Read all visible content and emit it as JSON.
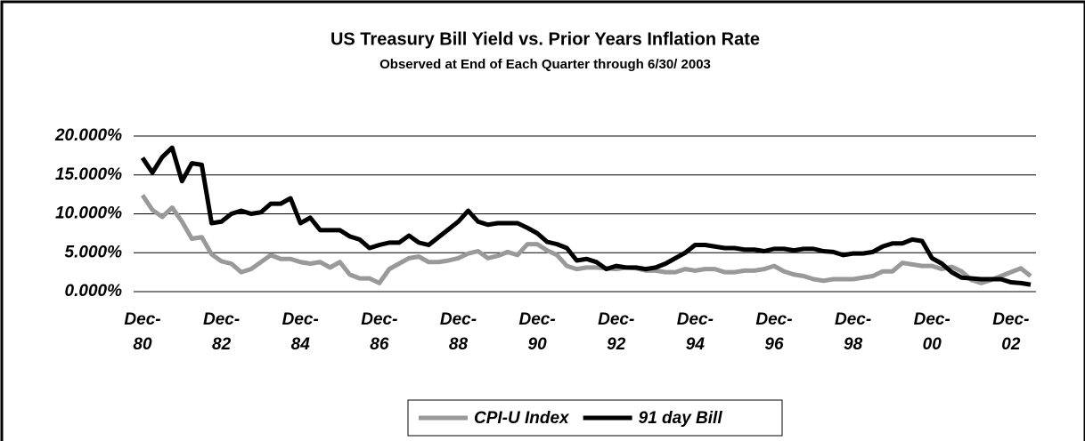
{
  "chart_data": {
    "type": "line",
    "title": "US Treasury Bill Yield vs. Prior Years Inflation Rate",
    "subtitle": "Observed at End of Each Quarter through 6/30/ 2003",
    "categories": [
      "Dec-80",
      null,
      null,
      null,
      null,
      null,
      null,
      null,
      "Dec-82",
      null,
      null,
      null,
      null,
      null,
      null,
      null,
      "Dec-84",
      null,
      null,
      null,
      null,
      null,
      null,
      null,
      "Dec-86",
      null,
      null,
      null,
      null,
      null,
      null,
      null,
      "Dec-88",
      null,
      null,
      null,
      null,
      null,
      null,
      null,
      "Dec-90",
      null,
      null,
      null,
      null,
      null,
      null,
      null,
      "Dec-92",
      null,
      null,
      null,
      null,
      null,
      null,
      null,
      "Dec-94",
      null,
      null,
      null,
      null,
      null,
      null,
      null,
      "Dec-96",
      null,
      null,
      null,
      null,
      null,
      null,
      null,
      "Dec-98",
      null,
      null,
      null,
      null,
      null,
      null,
      null,
      "Dec-00",
      null,
      null,
      null,
      null,
      null,
      null,
      null,
      "Dec-02",
      null,
      null
    ],
    "series": [
      {
        "name": "CPI-U Index",
        "color": "#999999",
        "values": [
          12.4,
          10.5,
          9.6,
          10.8,
          9.0,
          6.8,
          7.0,
          4.8,
          3.9,
          3.6,
          2.5,
          2.9,
          3.8,
          4.7,
          4.2,
          4.2,
          3.8,
          3.6,
          3.8,
          3.1,
          3.8,
          2.2,
          1.7,
          1.7,
          1.1,
          2.9,
          3.6,
          4.3,
          4.5,
          3.8,
          3.8,
          4.0,
          4.3,
          4.9,
          5.2,
          4.3,
          4.6,
          5.1,
          4.7,
          6.1,
          6.1,
          5.3,
          4.7,
          3.3,
          2.9,
          3.1,
          3.1,
          3.0,
          2.9,
          3.1,
          3.0,
          2.7,
          2.7,
          2.5,
          2.5,
          2.9,
          2.7,
          2.9,
          2.9,
          2.5,
          2.5,
          2.7,
          2.7,
          2.9,
          3.3,
          2.6,
          2.2,
          2.0,
          1.6,
          1.4,
          1.6,
          1.6,
          1.6,
          1.8,
          2.0,
          2.6,
          2.6,
          3.7,
          3.5,
          3.3,
          3.3,
          2.9,
          3.2,
          2.6,
          1.5,
          1.1,
          1.5,
          2.0,
          2.5,
          3.0,
          2.0
        ]
      },
      {
        "name": "91 day Bill",
        "color": "#000000",
        "values": [
          17.2,
          15.3,
          17.3,
          18.5,
          14.2,
          16.5,
          16.3,
          8.8,
          9.0,
          10.0,
          10.4,
          10.0,
          10.2,
          11.3,
          11.3,
          12.0,
          8.8,
          9.5,
          7.9,
          7.9,
          7.9,
          7.1,
          6.7,
          5.6,
          6.0,
          6.3,
          6.3,
          7.2,
          6.3,
          6.0,
          7.0,
          8.0,
          9.0,
          10.4,
          9.0,
          8.6,
          8.8,
          8.8,
          8.8,
          8.2,
          7.5,
          6.4,
          6.1,
          5.6,
          4.0,
          4.2,
          3.8,
          2.9,
          3.3,
          3.1,
          3.1,
          2.9,
          3.1,
          3.6,
          4.3,
          5.0,
          6.0,
          6.0,
          5.8,
          5.6,
          5.6,
          5.4,
          5.4,
          5.2,
          5.5,
          5.5,
          5.3,
          5.5,
          5.5,
          5.2,
          5.1,
          4.7,
          4.9,
          4.9,
          5.1,
          5.8,
          6.2,
          6.2,
          6.7,
          6.5,
          4.3,
          3.6,
          2.5,
          1.8,
          1.7,
          1.6,
          1.6,
          1.6,
          1.2,
          1.1,
          0.9
        ]
      }
    ],
    "ylim": [
      0,
      20
    ],
    "yticks": [
      {
        "value": 0,
        "label": "0.000%"
      },
      {
        "value": 5,
        "label": "5.000%"
      },
      {
        "value": 10,
        "label": "10.000%"
      },
      {
        "value": 15,
        "label": "15.000%"
      },
      {
        "value": 20,
        "label": "20.000%"
      }
    ],
    "grid": true,
    "legend": "bottom"
  }
}
